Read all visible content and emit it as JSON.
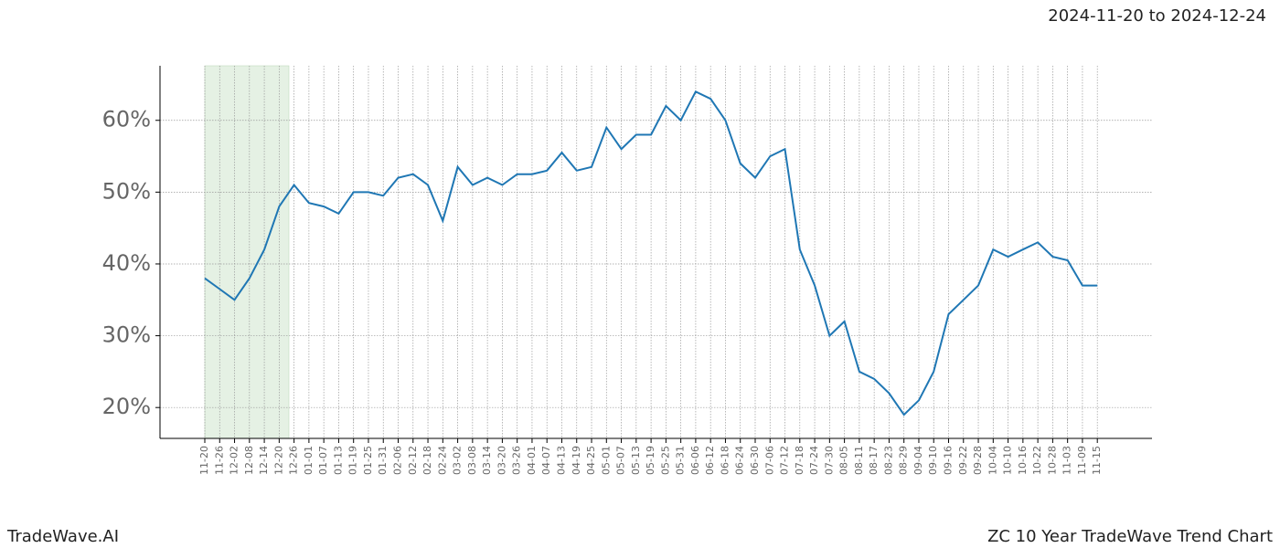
{
  "chart_data": {
    "type": "line",
    "subtitle": "2024-11-20 to 2024-12-24",
    "brand": "TradeWave.AI",
    "title": "ZC 10 Year TradeWave Trend Chart",
    "categories": [
      "11-20",
      "11-26",
      "12-02",
      "12-08",
      "12-14",
      "12-20",
      "12-26",
      "01-01",
      "01-07",
      "01-13",
      "01-19",
      "01-25",
      "01-31",
      "02-06",
      "02-12",
      "02-18",
      "02-24",
      "03-02",
      "03-08",
      "03-14",
      "03-20",
      "03-26",
      "04-01",
      "04-07",
      "04-13",
      "04-19",
      "04-25",
      "05-01",
      "05-07",
      "05-13",
      "05-19",
      "05-25",
      "05-31",
      "06-06",
      "06-12",
      "06-18",
      "06-24",
      "06-30",
      "07-06",
      "07-12",
      "07-18",
      "07-24",
      "07-30",
      "08-05",
      "08-11",
      "08-17",
      "08-23",
      "08-29",
      "09-04",
      "09-10",
      "09-16",
      "09-22",
      "09-28",
      "10-04",
      "10-10",
      "10-16",
      "10-22",
      "10-28",
      "11-03",
      "11-09",
      "11-15"
    ],
    "series": [
      {
        "color": "#1f77b4",
        "values": [
          38,
          36.5,
          35,
          38,
          42,
          48,
          51,
          48.5,
          48,
          47,
          50,
          50,
          49.5,
          52,
          52.5,
          51,
          46,
          53.5,
          51,
          52,
          51,
          52.5,
          52.5,
          53,
          55.5,
          53,
          53.5,
          59,
          56,
          58,
          58,
          62,
          60,
          64,
          63,
          60,
          54,
          52,
          55,
          56,
          42,
          37,
          30,
          32,
          25,
          24,
          22,
          19,
          21,
          25,
          33,
          35,
          37,
          42,
          41,
          42,
          43,
          41,
          40.5,
          37,
          37
        ]
      }
    ],
    "ylim": [
      15.7,
      67.6
    ],
    "yticks": [
      {
        "value": 20,
        "label": "20%"
      },
      {
        "value": 30,
        "label": "30%"
      },
      {
        "value": 40,
        "label": "40%"
      },
      {
        "value": 50,
        "label": "50%"
      },
      {
        "value": 60,
        "label": "60%"
      }
    ],
    "grid": true
  }
}
